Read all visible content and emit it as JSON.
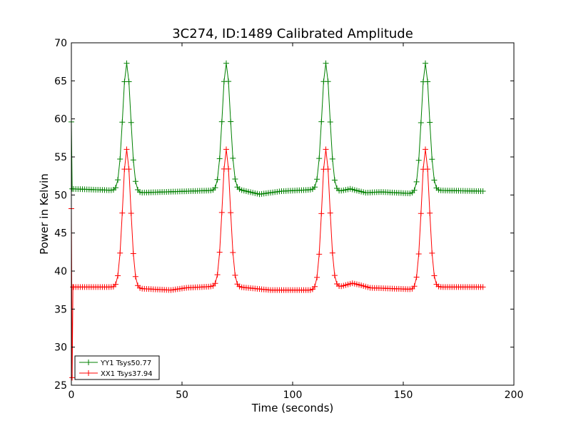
{
  "chart_data": {
    "type": "line",
    "title": "3C274, ID:1489 Calibrated Amplitude",
    "xlabel": "Time (seconds)",
    "ylabel": "Power in Kelvin",
    "xlim": [
      0,
      200
    ],
    "ylim": [
      25,
      70
    ],
    "xticks": [
      0,
      50,
      100,
      150,
      200
    ],
    "yticks": [
      25,
      30,
      35,
      40,
      45,
      50,
      55,
      60,
      65,
      70
    ],
    "legend_position": "lower-left",
    "grid": false,
    "marker": "plus",
    "sample_step": 1,
    "x_end": 186,
    "peaks": [
      25,
      70,
      115,
      160
    ],
    "series": [
      {
        "name": "YY1 Tsys50.77",
        "color": "#008000",
        "baseline_segments": [
          {
            "x": [
              0.5,
              20
            ],
            "y": [
              50.8,
              50.6
            ]
          },
          {
            "x": [
              31,
              64
            ],
            "y": [
              50.3,
              50.6
            ]
          },
          {
            "x": [
              76,
              85,
              95,
              109
            ],
            "y": [
              50.7,
              50.1,
              50.5,
              50.7
            ]
          },
          {
            "x": [
              121,
              126,
              133,
              140,
              153
            ],
            "y": [
              50.5,
              50.8,
              50.3,
              50.4,
              50.2
            ]
          },
          {
            "x": [
              166,
              186
            ],
            "y": [
              50.6,
              50.5
            ]
          }
        ],
        "peak_value": 67.3,
        "start_values": [
          59.6,
          50.8
        ]
      },
      {
        "name": "XX1 Tsys37.94",
        "color": "#ff0000",
        "baseline_segments": [
          {
            "x": [
              1,
              18
            ],
            "y": [
              37.9,
              37.9
            ]
          },
          {
            "x": [
              31,
              45,
              52,
              65
            ],
            "y": [
              37.7,
              37.5,
              37.8,
              38.0
            ]
          },
          {
            "x": [
              76,
              90,
              108
            ],
            "y": [
              37.9,
              37.5,
              37.5
            ]
          },
          {
            "x": [
              122,
              127,
              130,
              135,
              154
            ],
            "y": [
              38.0,
              38.4,
              38.2,
              37.8,
              37.6
            ]
          },
          {
            "x": [
              166,
              186
            ],
            "y": [
              37.9,
              37.9
            ]
          }
        ],
        "peak_value": 56.0,
        "start_values": [
          48.2,
          26.0,
          37.9
        ]
      }
    ]
  }
}
